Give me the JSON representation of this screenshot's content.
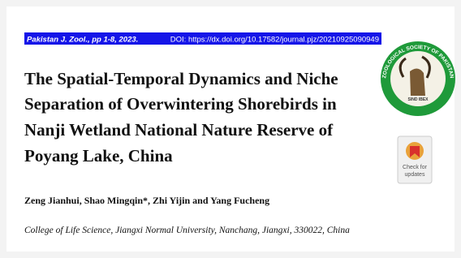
{
  "header": {
    "journal": "Pakistan J. Zool., pp 1-8, 2023.",
    "doi": "DOI: https://dx.doi.org/10.17582/journal.pjz/20210925090949"
  },
  "title_lines": [
    "The Spatial-Temporal Dynamics and Niche",
    "Separation of Overwintering Shorebirds in",
    "Nanji Wetland National Nature Reserve of",
    "Poyang Lake, China"
  ],
  "logo": {
    "ring_text": "ZOOLOGICAL SOCIETY OF PAKISTAN",
    "caption": "SIND IBEX"
  },
  "badge": {
    "line1": "Check for",
    "line2": "updates"
  },
  "authors": "Zeng Jianhui, Shao Mingqin*, Zhi Yijin and Yang Fucheng",
  "affiliation": "College of Life Science, Jiangxi Normal University, Nanchang, Jiangxi, 330022, China"
}
